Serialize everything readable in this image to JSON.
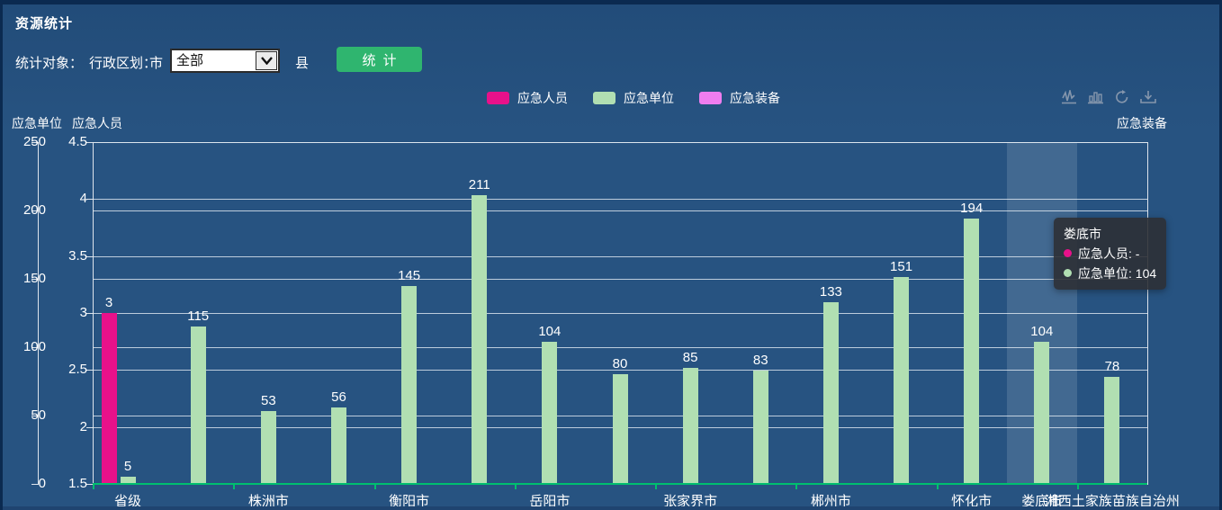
{
  "header": {
    "title": "资源统计"
  },
  "controls": {
    "stat_object_label": "统计对象：",
    "admin_division_label": "行政区划：",
    "city_label": "市",
    "county_label": "县",
    "select_value": "全部",
    "stat_button_label": "统计"
  },
  "legend": {
    "items": [
      {
        "label": "应急人员",
        "color": "#e8118a"
      },
      {
        "label": "应急单位",
        "color": "#b1dfb2"
      },
      {
        "label": "应急装备",
        "color": "#ef7def"
      }
    ]
  },
  "toolbox": {
    "icons": [
      "line-chart-icon",
      "bar-chart-icon",
      "restore-icon",
      "save-image-icon"
    ],
    "color": "#8596ac"
  },
  "chart_data": {
    "type": "bar",
    "categories": [
      "省级",
      "",
      "株洲市",
      "",
      "衡阳市",
      "",
      "岳阳市",
      "",
      "张家界市",
      "",
      "郴州市",
      "",
      "怀化市",
      "娄底市",
      "湘西土家族苗族自治州"
    ],
    "visible_category_labels": [
      "省级",
      "株洲市",
      "衡阳市",
      "岳阳市",
      "张家界市",
      "郴州市",
      "怀化市",
      "湘西土家族苗族自治州"
    ],
    "series": [
      {
        "name": "应急人员",
        "axis": "persons",
        "color": "#e8118a",
        "values": [
          3,
          null,
          null,
          null,
          null,
          null,
          null,
          null,
          null,
          null,
          null,
          null,
          null,
          null,
          null
        ]
      },
      {
        "name": "应急单位",
        "axis": "units",
        "color": "#b1dfb2",
        "values": [
          5,
          115,
          53,
          56,
          145,
          211,
          104,
          80,
          85,
          83,
          133,
          151,
          194,
          104,
          78
        ]
      },
      {
        "name": "应急装备",
        "axis": "equipment",
        "color": "#ef7def",
        "values": [
          null,
          null,
          null,
          null,
          null,
          null,
          null,
          null,
          null,
          null,
          null,
          null,
          null,
          null,
          null
        ]
      }
    ],
    "axes": {
      "units": {
        "name": "应急单位",
        "min": 0,
        "max": 250,
        "ticks": [
          0,
          50,
          100,
          150,
          200,
          250
        ]
      },
      "persons": {
        "name": "应急人员",
        "min": 1.5,
        "max": 4.5,
        "ticks": [
          1.5,
          2,
          2.5,
          3,
          3.5,
          4,
          4.5
        ]
      },
      "equipment": {
        "name": "应急装备",
        "position": "right"
      }
    },
    "grid": true,
    "legend_position": "top-center",
    "highlight": {
      "index": 13,
      "category": "娄底市"
    }
  },
  "tooltip": {
    "title": "娄底市",
    "rows": [
      {
        "text": "应急人员: -",
        "color": "#e8118a"
      },
      {
        "text": "应急单位: 104",
        "color": "#b1dfb2"
      }
    ]
  }
}
